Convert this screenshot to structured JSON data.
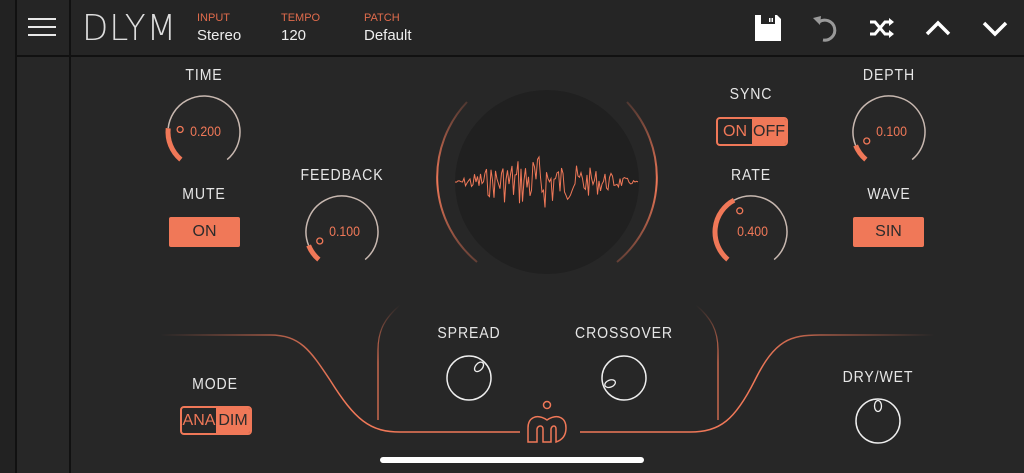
{
  "header": {
    "logo": "DLYM",
    "fields": [
      {
        "label": "INPUT",
        "value": "Stereo"
      },
      {
        "label": "TEMPO",
        "value": "120"
      },
      {
        "label": "PATCH",
        "value": "Default"
      }
    ],
    "icons": [
      "menu-icon",
      "save-icon",
      "undo-icon",
      "shuffle-icon",
      "chevron-up-icon",
      "chevron-down-icon"
    ]
  },
  "controls": {
    "time": {
      "label": "TIME",
      "value": "0.200",
      "level": 0.2
    },
    "feedback": {
      "label": "FEEDBACK",
      "value": "0.100",
      "level": 0.1
    },
    "depth": {
      "label": "DEPTH",
      "value": "0.100",
      "level": 0.1
    },
    "rate": {
      "label": "RATE",
      "value": "0.400",
      "level": 0.4
    },
    "mute": {
      "label": "MUTE",
      "value": "ON"
    },
    "wave": {
      "label": "WAVE",
      "value": "SIN"
    },
    "sync": {
      "label": "SYNC",
      "options": [
        "ON",
        "OFF"
      ],
      "selected": "OFF"
    },
    "mode": {
      "label": "MODE",
      "options": [
        "ANA",
        "DIM"
      ],
      "selected": "DIM"
    },
    "spread": {
      "label": "SPREAD",
      "level": 0.65
    },
    "crossover": {
      "label": "CROSSOVER",
      "level": 0.1
    },
    "drywet": {
      "label": "DRY/WET",
      "level": 0.5
    }
  },
  "colors": {
    "accent": "#f07858",
    "background": "#272727",
    "header": "#252525",
    "ring": "#c8b8b0"
  }
}
